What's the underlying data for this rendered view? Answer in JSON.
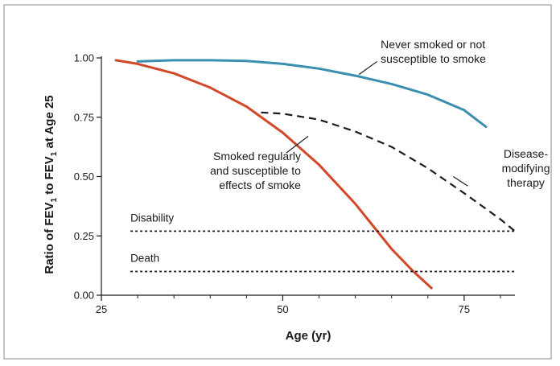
{
  "chart_data": {
    "type": "line",
    "xlabel": "Age (yr)",
    "ylabel_parts": [
      "Ratio of FEV",
      "1",
      " to FEV",
      "1",
      " at Age 25"
    ],
    "xlim": [
      25,
      82
    ],
    "ylim": [
      0,
      1.0
    ],
    "x_ticks": [
      25,
      50,
      75
    ],
    "x_minor_ticks": [
      30,
      35,
      40,
      45,
      55,
      60,
      65,
      70,
      80
    ],
    "y_ticks": [
      {
        "value": 0.0,
        "label": "0.00"
      },
      {
        "value": 0.25,
        "label": "0.25"
      },
      {
        "value": 0.5,
        "label": "0.50"
      },
      {
        "value": 0.75,
        "label": "0.75"
      },
      {
        "value": 1.0,
        "label": "1.00"
      }
    ],
    "series": [
      {
        "key": "never_smoked",
        "color": "#3a8fb0",
        "style": "solid",
        "points": [
          [
            30,
            0.985
          ],
          [
            35,
            0.99
          ],
          [
            40,
            0.99
          ],
          [
            45,
            0.987
          ],
          [
            50,
            0.975
          ],
          [
            55,
            0.955
          ],
          [
            60,
            0.925
          ],
          [
            65,
            0.89
          ],
          [
            70,
            0.845
          ],
          [
            75,
            0.78
          ],
          [
            78,
            0.71
          ]
        ]
      },
      {
        "key": "smoked_susceptible",
        "color": "#d2492a",
        "style": "solid",
        "points": [
          [
            27,
            0.99
          ],
          [
            30,
            0.975
          ],
          [
            35,
            0.935
          ],
          [
            40,
            0.875
          ],
          [
            45,
            0.795
          ],
          [
            50,
            0.685
          ],
          [
            55,
            0.55
          ],
          [
            60,
            0.385
          ],
          [
            65,
            0.195
          ],
          [
            68,
            0.1
          ],
          [
            70.5,
            0.03
          ]
        ]
      },
      {
        "key": "disease_modifying",
        "color": "#1a1a1a",
        "style": "dashed",
        "points": [
          [
            47,
            0.77
          ],
          [
            50,
            0.765
          ],
          [
            55,
            0.74
          ],
          [
            60,
            0.69
          ],
          [
            65,
            0.625
          ],
          [
            70,
            0.535
          ],
          [
            75,
            0.43
          ],
          [
            80,
            0.32
          ],
          [
            82,
            0.27
          ]
        ]
      },
      {
        "key": "disability",
        "color": "#1a1a1a",
        "style": "dotted",
        "points": [
          [
            29,
            0.27
          ],
          [
            82,
            0.27
          ]
        ]
      },
      {
        "key": "death",
        "color": "#1a1a1a",
        "style": "dotted",
        "points": [
          [
            29,
            0.1
          ],
          [
            82,
            0.1
          ]
        ]
      }
    ],
    "annotations": [
      {
        "key": "never_smoked",
        "lines": [
          "Never smoked or not",
          "susceptible to smoke"
        ],
        "anchor": "left",
        "text_at": [
          63.5,
          1.04
        ],
        "pointer_from": [
          63.0,
          0.985
        ],
        "pointer_to": [
          60.5,
          0.93
        ]
      },
      {
        "key": "smoked_susceptible",
        "lines": [
          "Smoked regularly",
          "and susceptible to",
          "effects of smoke"
        ],
        "anchor": "end",
        "text_at": [
          52.5,
          0.57
        ],
        "pointer_from": [
          50.5,
          0.6
        ],
        "pointer_to": [
          53.5,
          0.67
        ]
      },
      {
        "key": "disease_modifying",
        "lines": [
          "Disease-",
          "modifying",
          "therapy"
        ],
        "anchor": "middle",
        "text_at": [
          83.5,
          0.58
        ],
        "pointer_from": [
          75.5,
          0.46
        ],
        "pointer_to": [
          73.5,
          0.5
        ]
      },
      {
        "key": "disability",
        "lines": [
          "Disability"
        ],
        "anchor": "start",
        "text_at": [
          29.0,
          0.31
        ],
        "pointer_from": null,
        "pointer_to": null
      },
      {
        "key": "death",
        "lines": [
          "Death"
        ],
        "anchor": "start",
        "text_at": [
          29.0,
          0.14
        ],
        "pointer_from": null,
        "pointer_to": null
      }
    ]
  }
}
